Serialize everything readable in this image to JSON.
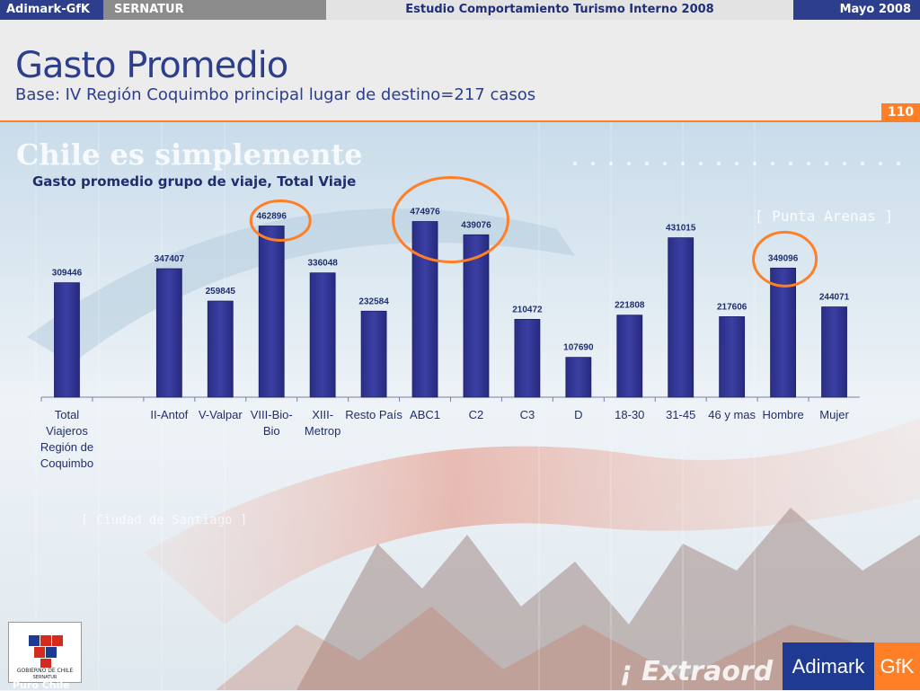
{
  "topbar": {
    "brand": "Adimark-GfK",
    "client": "SERNATUR",
    "study": "Estudio Comportamiento Turismo Interno 2008",
    "date": "Mayo 2008"
  },
  "header": {
    "title": "Gasto Promedio",
    "subtitle": "Base: IV Región Coquimbo principal lugar de destino=217 casos",
    "page_number": "110"
  },
  "background_text": {
    "slogan": "Chile es simplemente",
    "punta_arenas": "[ Punta Arenas ]",
    "santiago": "[ Ciudad de Santiago ]",
    "extraord": "¡ Extraord"
  },
  "logos": {
    "gobierno": "GOBIERNO DE CHILE",
    "sernatur": "SERNATUR",
    "puro_chile": "Puro Chile",
    "adimark": "Adimark",
    "gfk": "GfK"
  },
  "colors": {
    "bar": "#3b3fa3",
    "highlight_circle": "#ff7f27",
    "title_blue": "#2c3e8c"
  },
  "chart_data": {
    "type": "bar",
    "title": "Gasto promedio grupo de viaje, Total Viaje",
    "categories": [
      [
        "Total",
        "Viajeros",
        "Región de",
        "Coquimbo"
      ],
      [
        ""
      ],
      [
        "II-Antof"
      ],
      [
        "V-Valpar"
      ],
      [
        "VIII-Bio-",
        "Bio"
      ],
      [
        "XIII-",
        "Metrop"
      ],
      [
        "Resto País"
      ],
      [
        "ABC1"
      ],
      [
        "C2"
      ],
      [
        "C3"
      ],
      [
        "D"
      ],
      [
        "18-30"
      ],
      [
        "31-45"
      ],
      [
        "46 y mas"
      ],
      [
        "Hombre"
      ],
      [
        "Mujer"
      ]
    ],
    "values": [
      309446,
      null,
      347407,
      259845,
      462896,
      336048,
      232584,
      474976,
      439076,
      210472,
      107690,
      221808,
      431015,
      217606,
      349096,
      244071
    ],
    "highlighted": [
      "VIII-Bio-Bio",
      "ABC1",
      "C2",
      "Hombre"
    ],
    "ylim": [
      0,
      520000
    ],
    "grid": false,
    "legend": "none"
  }
}
